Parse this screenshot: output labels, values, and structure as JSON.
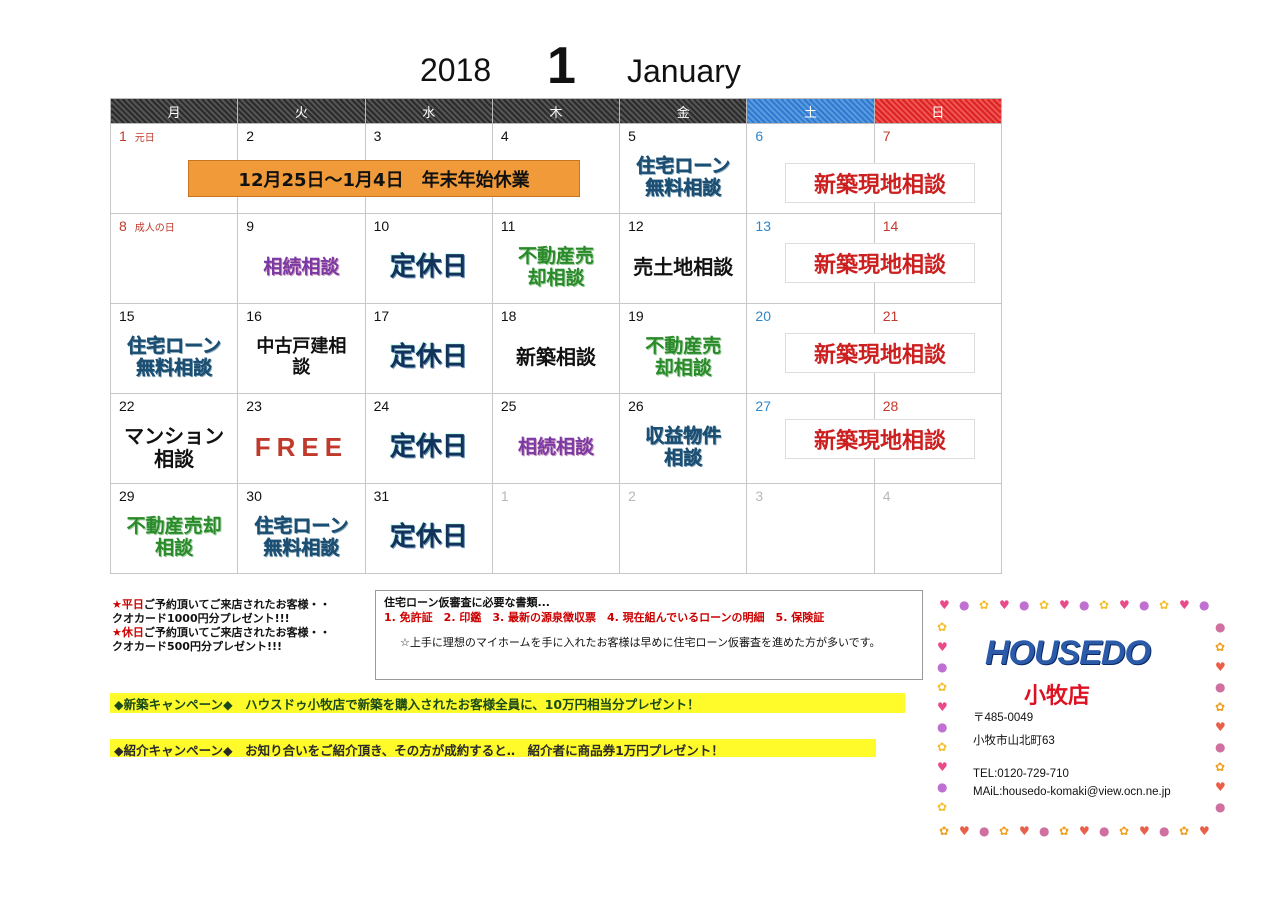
{
  "header": {
    "year": "2018",
    "month": "1",
    "month_en": "January"
  },
  "weekdays": [
    "月",
    "火",
    "水",
    "木",
    "金",
    "土",
    "日"
  ],
  "weeks": [
    [
      {
        "day": "1",
        "holiday": "元日",
        "event": ""
      },
      {
        "day": "2",
        "event": ""
      },
      {
        "day": "3",
        "event": ""
      },
      {
        "day": "4",
        "event": ""
      },
      {
        "day": "5",
        "event": "住宅ローン\n無料相談"
      },
      {
        "day": "6",
        "event": ""
      },
      {
        "day": "7",
        "event": ""
      }
    ],
    [
      {
        "day": "8",
        "holiday": "成人の日",
        "event": ""
      },
      {
        "day": "9",
        "event": "相続相談"
      },
      {
        "day": "10",
        "event": "定休日"
      },
      {
        "day": "11",
        "event": "不動産売\n却相談"
      },
      {
        "day": "12",
        "event": "売土地相談"
      },
      {
        "day": "13",
        "event": ""
      },
      {
        "day": "14",
        "event": ""
      }
    ],
    [
      {
        "day": "15",
        "event": "住宅ローン\n無料相談"
      },
      {
        "day": "16",
        "event": "中古戸建相\n談"
      },
      {
        "day": "17",
        "event": "定休日"
      },
      {
        "day": "18",
        "event": "新築相談"
      },
      {
        "day": "19",
        "event": "不動産売\n却相談"
      },
      {
        "day": "20",
        "event": ""
      },
      {
        "day": "21",
        "event": ""
      }
    ],
    [
      {
        "day": "22",
        "event": "マンション\n相談"
      },
      {
        "day": "23",
        "event": "FREE"
      },
      {
        "day": "24",
        "event": "定休日"
      },
      {
        "day": "25",
        "event": "相続相談"
      },
      {
        "day": "26",
        "event": "収益物件\n相談"
      },
      {
        "day": "27",
        "event": ""
      },
      {
        "day": "28",
        "event": ""
      }
    ],
    [
      {
        "day": "29",
        "event": "不動産売却\n相談"
      },
      {
        "day": "30",
        "event": "住宅ローン\n無料相談"
      },
      {
        "day": "31",
        "event": "定休日"
      },
      {
        "day": "1",
        "event": ""
      },
      {
        "day": "2",
        "event": ""
      },
      {
        "day": "3",
        "event": ""
      },
      {
        "day": "4",
        "event": ""
      }
    ]
  ],
  "closure_banner": "12月25日～1月4日　年末年始休業",
  "weekend_event": "新築現地相談",
  "present": {
    "line1_red": "★平日",
    "line1": "ご予約頂いてご来店されたお客様・・",
    "line2": "クオカード1000円分プレゼント!!!",
    "line3_red": "★休日",
    "line3": "ご予約頂いてご来店されたお客様・・",
    "line4": "クオカード500円分プレゼント!!!"
  },
  "docs": {
    "title": "住宅ローン仮審査に必要な書類...",
    "items": "1. 免許証　2. 印鑑　3. 最新の源泉徴収票　4. 現在組んでいるローンの明細　5. 保険証",
    "note": "☆上手に理想のマイホームを手に入れたお客様は早めに住宅ローン仮審査を進めた方が多いです。"
  },
  "campaign1": "◆新築キャンペーン◆　ハウスドゥ小牧店で新築を購入されたお客様全員に、10万円相当分プレゼント！",
  "campaign2": "◆紹介キャンペーン◆　お知り合いをご紹介頂き、その方が成約すると‥　紹介者に商品券1万円プレゼント！",
  "shop": {
    "logo": "HOUSEDO",
    "name": "小牧店",
    "postal": "〒485-0049",
    "address": "小牧市山北町63",
    "tel": "TEL:0120-729-710",
    "mail": "MAiL:housedo-komaki@view.ocn.ne.jp"
  }
}
